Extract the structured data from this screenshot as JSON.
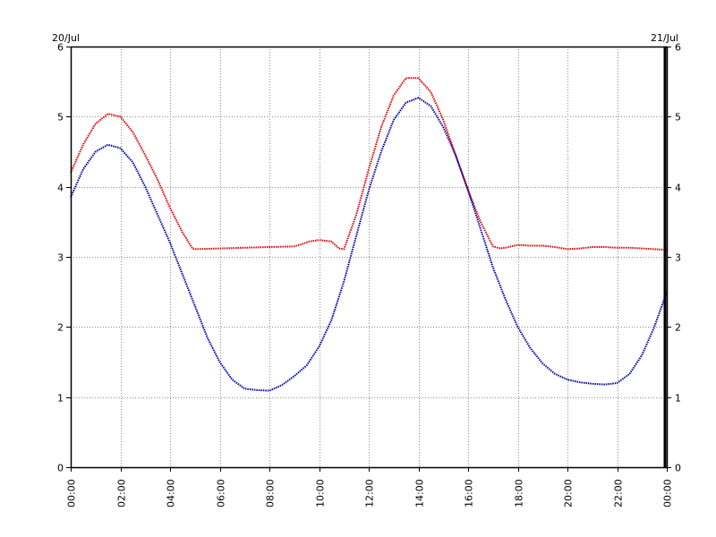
{
  "chart_data": {
    "type": "line",
    "title": "",
    "xlabel": "",
    "ylabel": "",
    "date_left": "20/Jul",
    "date_right": "21/Jul",
    "x_ticks": [
      "00:00",
      "02:00",
      "04:00",
      "06:00",
      "08:00",
      "10:00",
      "12:00",
      "14:00",
      "16:00",
      "18:00",
      "20:00",
      "22:00",
      "00:00"
    ],
    "y_ticks": [
      "0",
      "1",
      "2",
      "3",
      "4",
      "5",
      "6"
    ],
    "xlim": [
      0,
      24
    ],
    "ylim": [
      0,
      6
    ],
    "grid": true,
    "x_unit": "hours",
    "series": [
      {
        "color": "#dd0000",
        "x": [
          0,
          0.5,
          1,
          1.5,
          2,
          2.5,
          3,
          3.5,
          4,
          4.5,
          4.9,
          5,
          6,
          7,
          8,
          9,
          9.3,
          9.6,
          10,
          10.5,
          10.8,
          11,
          11.5,
          12,
          12.5,
          13,
          13.5,
          14,
          14.5,
          15,
          15.5,
          16,
          16.5,
          17,
          17.3,
          17.5,
          18,
          18.5,
          19,
          19.5,
          20,
          20.5,
          21,
          21.5,
          22,
          22.5,
          23,
          23.5,
          24
        ],
        "y": [
          4.2,
          4.6,
          4.9,
          5.04,
          5.0,
          4.78,
          4.45,
          4.1,
          3.7,
          3.35,
          3.12,
          3.11,
          3.12,
          3.13,
          3.14,
          3.15,
          3.18,
          3.22,
          3.24,
          3.22,
          3.12,
          3.11,
          3.6,
          4.25,
          4.85,
          5.3,
          5.55,
          5.55,
          5.35,
          4.95,
          4.45,
          3.95,
          3.5,
          3.15,
          3.12,
          3.13,
          3.17,
          3.16,
          3.16,
          3.14,
          3.11,
          3.12,
          3.14,
          3.14,
          3.13,
          3.13,
          3.12,
          3.11,
          3.1
        ]
      },
      {
        "color": "#0000aa",
        "x": [
          0,
          0.5,
          1,
          1.5,
          2,
          2.5,
          3,
          3.5,
          4,
          4.5,
          5,
          5.5,
          6,
          6.5,
          7,
          7.5,
          8,
          8.5,
          9,
          9.5,
          10,
          10.5,
          11,
          11.5,
          12,
          12.5,
          13,
          13.5,
          14,
          14.5,
          15,
          15.5,
          16,
          16.5,
          17,
          17.5,
          18,
          18.5,
          19,
          19.5,
          20,
          20.5,
          21,
          21.5,
          22,
          22.5,
          23,
          23.5,
          24
        ],
        "y": [
          3.85,
          4.25,
          4.5,
          4.6,
          4.55,
          4.35,
          4.0,
          3.6,
          3.2,
          2.75,
          2.3,
          1.85,
          1.5,
          1.25,
          1.12,
          1.1,
          1.09,
          1.17,
          1.3,
          1.45,
          1.72,
          2.1,
          2.65,
          3.3,
          3.95,
          4.5,
          4.95,
          5.2,
          5.27,
          5.15,
          4.85,
          4.45,
          3.95,
          3.4,
          2.85,
          2.4,
          2.0,
          1.7,
          1.48,
          1.33,
          1.25,
          1.21,
          1.19,
          1.18,
          1.2,
          1.33,
          1.6,
          2.0,
          2.5
        ]
      }
    ]
  }
}
